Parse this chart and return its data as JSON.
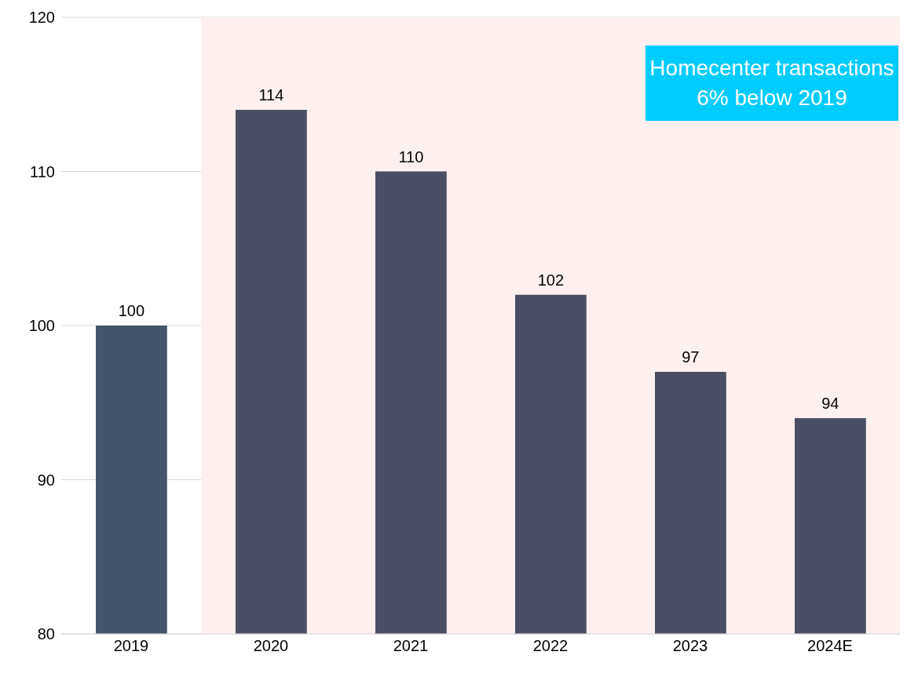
{
  "chart_data": {
    "type": "bar",
    "categories": [
      "2019",
      "2020",
      "2021",
      "2022",
      "2023",
      "2024E"
    ],
    "values": [
      100,
      114,
      110,
      102,
      97,
      94
    ],
    "colors": [
      "#44546a",
      "#4b4f63",
      "#4b4f63",
      "#4b4f63",
      "#4b4f63",
      "#4b4f63"
    ],
    "ylim": [
      80,
      120
    ],
    "yticks": [
      80,
      90,
      100,
      110,
      120
    ],
    "grid": "y",
    "data_labels": true,
    "bands": [
      {
        "axis": "x",
        "from": "2020",
        "to": "2024E",
        "color": "#fff0f0"
      }
    ],
    "annotations": [
      "Homecenter transactions 6% below 2019"
    ]
  }
}
